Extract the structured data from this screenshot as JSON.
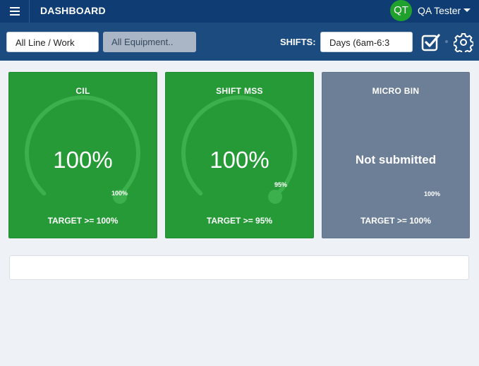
{
  "header": {
    "title": "DASHBOARD",
    "user_initials": "QT",
    "user_name": "QA Tester",
    "colors": {
      "bar": "#0f3d73",
      "avatar": "#20a02d"
    },
    "icons": {
      "menu": "hamburger-icon",
      "user_menu": "caret-down-icon"
    }
  },
  "filters": {
    "line_work": "All Line / Work",
    "equipment": "All Equipment..",
    "shifts_label": "SHIFTS:",
    "shift_value": "Days (6am-6:3",
    "icons": {
      "confirm": "checkbox-check-icon",
      "settings": "gear-icon"
    }
  },
  "cards": [
    {
      "title": "CIL",
      "value": "100%",
      "value_fraction": 1.0,
      "target_marker": "100%",
      "target_fraction": 1.0,
      "target_text": "TARGET >= 100%",
      "status": "green"
    },
    {
      "title": "SHIFT MSS",
      "value": "100%",
      "value_fraction": 1.0,
      "target_marker": "95%",
      "target_fraction": 0.95,
      "target_text": "TARGET >= 95%",
      "status": "green"
    },
    {
      "title": "MICRO BIN",
      "value": "Not submitted",
      "target_marker": "100%",
      "target_text": "TARGET >= 100%",
      "status": "gray"
    }
  ],
  "colors": {
    "green": "#259a36",
    "gray": "#6d7f96",
    "gauge_track": "#3bb04c"
  }
}
